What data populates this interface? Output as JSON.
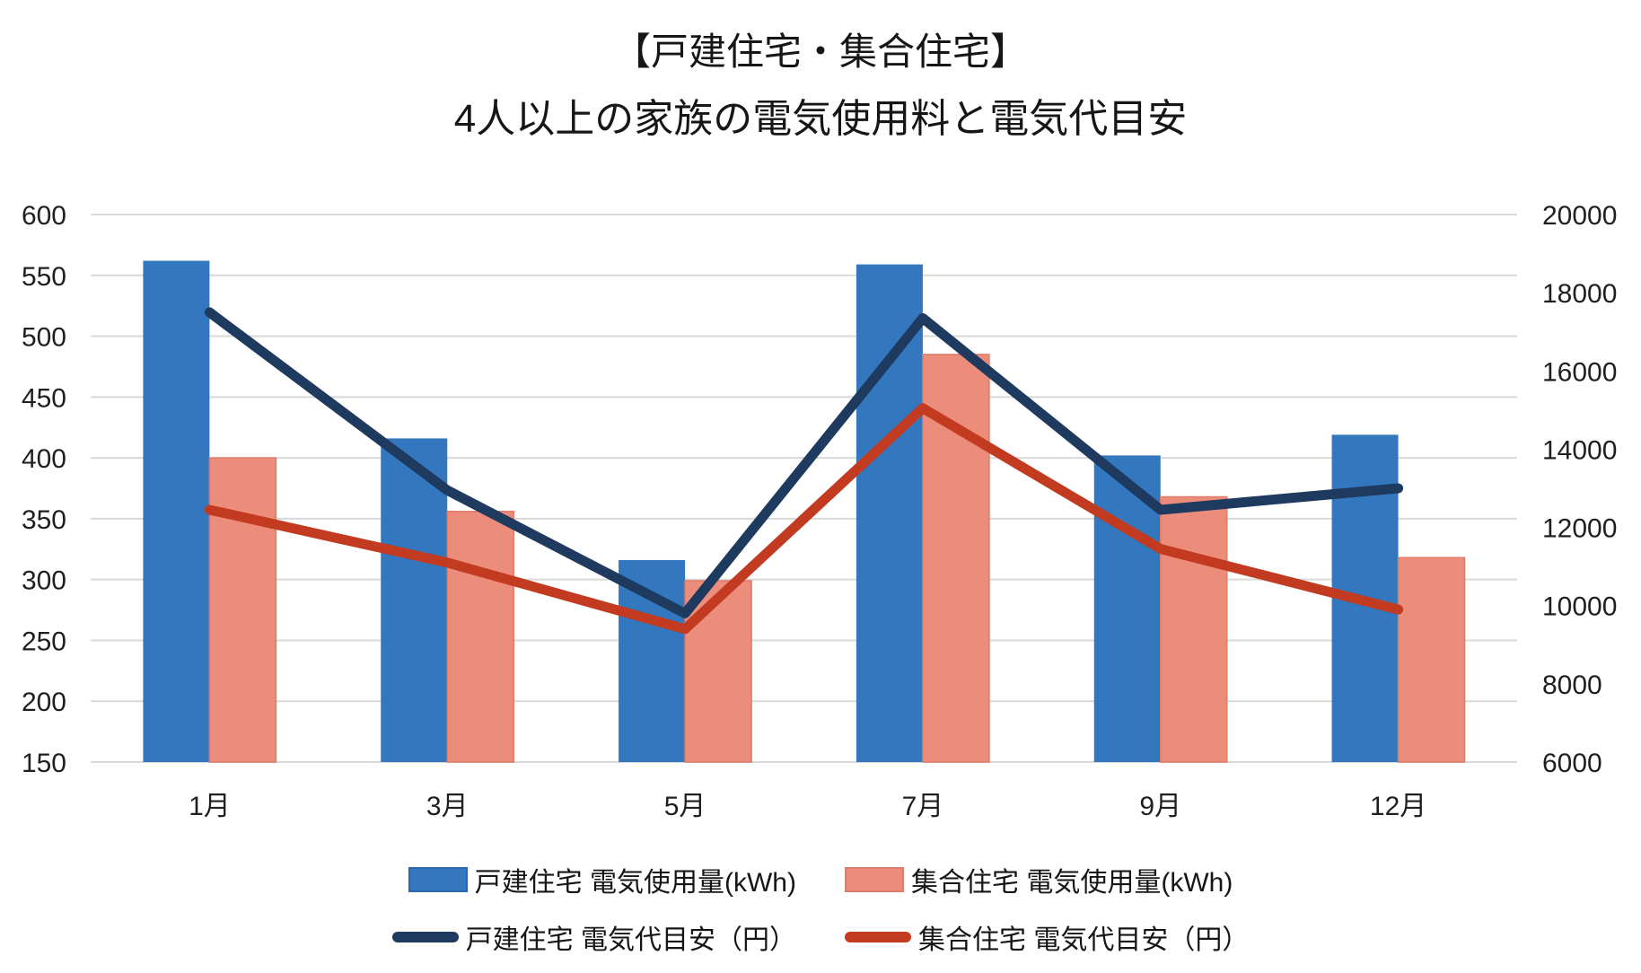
{
  "chart": {
    "title": "【戸建住宅・集合住宅】",
    "subtitle": "4人以上の家族の電気使用料と電気代目安"
  },
  "chart_data": {
    "type": "combo-bar-line",
    "title": "【戸建住宅・集合住宅】",
    "subtitle": "4人以上の家族の電気使用料と電気代目安",
    "categories": [
      "1月",
      "3月",
      "5月",
      "7月",
      "9月",
      "12月"
    ],
    "series": [
      {
        "name": "戸建住宅 電気使用量(kWh)",
        "type": "bar",
        "axis": "left",
        "color": "#3377BE",
        "border": "#2A67AC",
        "values": [
          562,
          416,
          316,
          559,
          402,
          419
        ]
      },
      {
        "name": "集合住宅 電気使用量(kWh)",
        "type": "bar",
        "axis": "left",
        "color": "#EC8C7A",
        "border": "#E07B69",
        "values": [
          400,
          356,
          299,
          485,
          368,
          318
        ]
      },
      {
        "name": "戸建住宅 電気代目安（円）",
        "type": "line",
        "axis": "right",
        "color": "#1E3A5F",
        "values": [
          17500,
          12950,
          9800,
          17350,
          12450,
          13000
        ]
      },
      {
        "name": "集合住宅 電気代目安（円）",
        "type": "line",
        "axis": "right",
        "color": "#C23A20",
        "values": [
          12450,
          11100,
          9400,
          15050,
          11450,
          9900
        ]
      }
    ],
    "axes": {
      "left": {
        "min": 150,
        "max": 600,
        "step": 50,
        "label": ""
      },
      "right": {
        "min": 6000,
        "max": 20000,
        "step": 2000,
        "label": ""
      }
    },
    "grid": true,
    "grid_color": "#D9D9D9",
    "legend_position": "bottom",
    "background_color": "#FFFFFF"
  }
}
